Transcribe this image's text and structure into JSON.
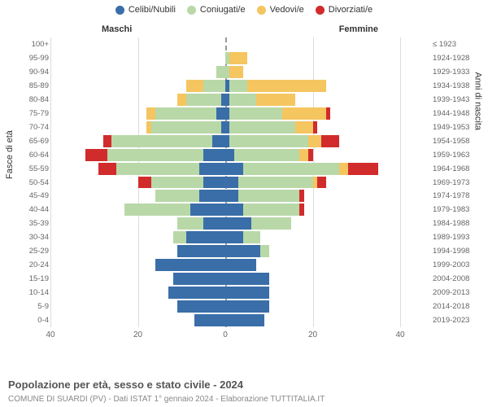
{
  "chart": {
    "type": "population-pyramid",
    "legend": [
      {
        "label": "Celibi/Nubili",
        "color": "#3a6ea8"
      },
      {
        "label": "Coniugati/e",
        "color": "#b9d8a8"
      },
      {
        "label": "Vedovi/e",
        "color": "#f5c560"
      },
      {
        "label": "Divorziati/e",
        "color": "#d22b2b"
      }
    ],
    "side_label_left": "Maschi",
    "side_label_right": "Femmine",
    "yaxis_left_title": "Fasce di età",
    "yaxis_right_title": "Anni di nascita",
    "xlim": 40,
    "xticks": [
      40,
      20,
      0,
      20,
      40
    ],
    "tick_fontsize": 10,
    "label_fontsize": 11,
    "background_color": "#ffffff",
    "grid_color": "#dcdcdc",
    "centerline_color": "#999999",
    "rows": [
      {
        "age": "100+",
        "birth": "≤ 1923",
        "m": [
          0,
          0,
          0,
          0
        ],
        "f": [
          0,
          0,
          0,
          0
        ]
      },
      {
        "age": "95-99",
        "birth": "1924-1928",
        "m": [
          0,
          0,
          0,
          0
        ],
        "f": [
          0,
          1,
          4,
          0
        ]
      },
      {
        "age": "90-94",
        "birth": "1929-1933",
        "m": [
          0,
          2,
          0,
          0
        ],
        "f": [
          0,
          1,
          3,
          0
        ]
      },
      {
        "age": "85-89",
        "birth": "1934-1938",
        "m": [
          0,
          5,
          4,
          0
        ],
        "f": [
          1,
          4,
          18,
          0
        ]
      },
      {
        "age": "80-84",
        "birth": "1939-1943",
        "m": [
          1,
          8,
          2,
          0
        ],
        "f": [
          1,
          6,
          9,
          0
        ]
      },
      {
        "age": "75-79",
        "birth": "1944-1948",
        "m": [
          2,
          14,
          2,
          0
        ],
        "f": [
          1,
          12,
          10,
          1
        ]
      },
      {
        "age": "70-74",
        "birth": "1949-1953",
        "m": [
          1,
          16,
          1,
          0
        ],
        "f": [
          1,
          15,
          4,
          1
        ]
      },
      {
        "age": "65-69",
        "birth": "1954-1958",
        "m": [
          3,
          23,
          0,
          2
        ],
        "f": [
          1,
          18,
          3,
          4
        ]
      },
      {
        "age": "60-64",
        "birth": "1959-1963",
        "m": [
          5,
          22,
          0,
          5
        ],
        "f": [
          2,
          15,
          2,
          1
        ]
      },
      {
        "age": "55-59",
        "birth": "1964-1968",
        "m": [
          6,
          19,
          0,
          4
        ],
        "f": [
          4,
          22,
          2,
          7
        ]
      },
      {
        "age": "50-54",
        "birth": "1969-1973",
        "m": [
          5,
          12,
          0,
          3
        ],
        "f": [
          3,
          17,
          1,
          2
        ]
      },
      {
        "age": "45-49",
        "birth": "1974-1978",
        "m": [
          6,
          10,
          0,
          0
        ],
        "f": [
          3,
          14,
          0,
          1
        ]
      },
      {
        "age": "40-44",
        "birth": "1979-1983",
        "m": [
          8,
          15,
          0,
          0
        ],
        "f": [
          4,
          13,
          0,
          1
        ]
      },
      {
        "age": "35-39",
        "birth": "1984-1988",
        "m": [
          5,
          6,
          0,
          0
        ],
        "f": [
          6,
          9,
          0,
          0
        ]
      },
      {
        "age": "30-34",
        "birth": "1989-1993",
        "m": [
          9,
          3,
          0,
          0
        ],
        "f": [
          4,
          4,
          0,
          0
        ]
      },
      {
        "age": "25-29",
        "birth": "1994-1998",
        "m": [
          11,
          0,
          0,
          0
        ],
        "f": [
          8,
          2,
          0,
          0
        ]
      },
      {
        "age": "20-24",
        "birth": "1999-2003",
        "m": [
          16,
          0,
          0,
          0
        ],
        "f": [
          7,
          0,
          0,
          0
        ]
      },
      {
        "age": "15-19",
        "birth": "2004-2008",
        "m": [
          12,
          0,
          0,
          0
        ],
        "f": [
          10,
          0,
          0,
          0
        ]
      },
      {
        "age": "10-14",
        "birth": "2009-2013",
        "m": [
          13,
          0,
          0,
          0
        ],
        "f": [
          10,
          0,
          0,
          0
        ]
      },
      {
        "age": "5-9",
        "birth": "2014-2018",
        "m": [
          11,
          0,
          0,
          0
        ],
        "f": [
          10,
          0,
          0,
          0
        ]
      },
      {
        "age": "0-4",
        "birth": "2019-2023",
        "m": [
          7,
          0,
          0,
          0
        ],
        "f": [
          9,
          0,
          0,
          0
        ]
      }
    ],
    "title": "Popolazione per età, sesso e stato civile - 2024",
    "subtitle": "COMUNE DI SUARDI (PV) - Dati ISTAT 1° gennaio 2024 - Elaborazione TUTTITALIA.IT"
  }
}
